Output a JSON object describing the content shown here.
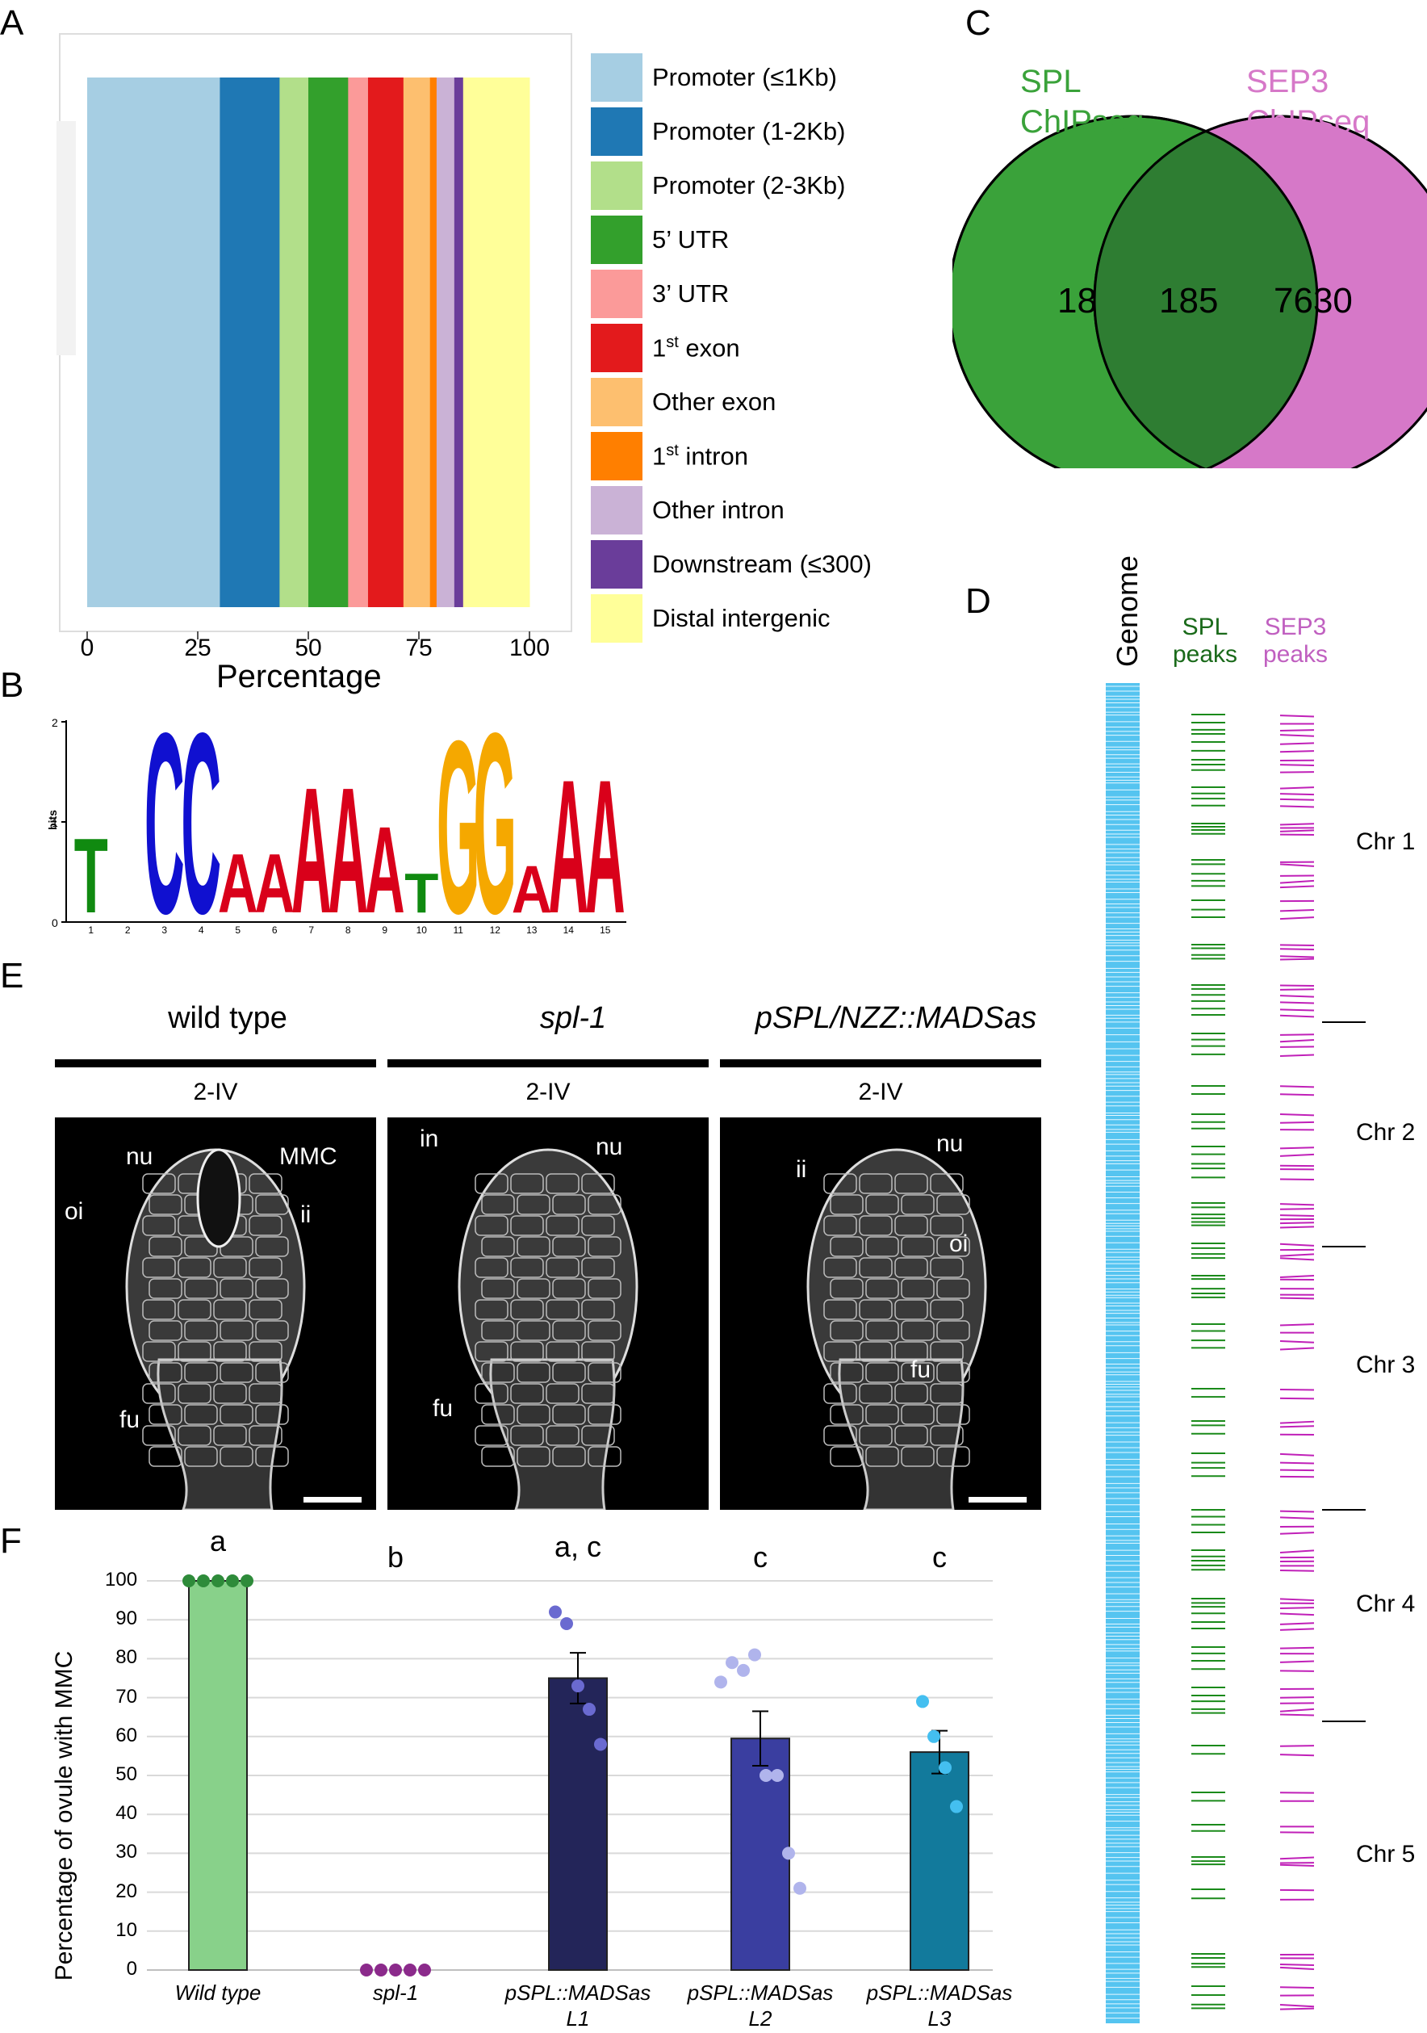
{
  "panels": {
    "a": "A",
    "b": "B",
    "c": "C",
    "d": "D",
    "e": "E",
    "f": "F"
  },
  "panelA": {
    "xlabel": "Percentage",
    "ticks": [
      "0",
      "25",
      "50",
      "75",
      "100"
    ],
    "legend": [
      {
        "label": "Promoter (≤1Kb)",
        "color": "#a6cee3"
      },
      {
        "label": "Promoter (1-2Kb)",
        "color": "#1f78b4"
      },
      {
        "label": "Promoter (2-3Kb)",
        "color": "#b2df8a"
      },
      {
        "label": "5’ UTR",
        "color": "#33a02c"
      },
      {
        "label": "3’ UTR",
        "color": "#fb9a99"
      },
      {
        "label_base": "1",
        "label_sup": "st",
        "label_rest": " exon",
        "color": "#e31a1c"
      },
      {
        "label": "Other exon",
        "color": "#fdbf6f"
      },
      {
        "label_base": "1",
        "label_sup": "st",
        "label_rest": " intron",
        "color": "#ff7f00"
      },
      {
        "label": "Other intron",
        "color": "#cab2d6"
      },
      {
        "label": "Downstream (≤300)",
        "color": "#6a3d9a"
      },
      {
        "label": "Distal intergenic",
        "color": "#ffff99"
      }
    ]
  },
  "panelB": {
    "ylabel": "bits",
    "yticks": [
      "2",
      "1",
      "0"
    ],
    "positions": [
      "1",
      "2",
      "3",
      "4",
      "5",
      "6",
      "7",
      "8",
      "9",
      "10",
      "11",
      "12",
      "13",
      "14",
      "15"
    ],
    "motif": [
      "T",
      "",
      "C",
      "C",
      "A",
      "A",
      "A",
      "A",
      "A",
      "T",
      "G",
      "G",
      "A",
      "A",
      "A"
    ]
  },
  "panelC": {
    "set1_label_line1": "SPL",
    "set1_label_line2": "ChIPseq",
    "set2_label_line1": "SEP3",
    "set2_label_line2": "ChIPseq",
    "only1": "18",
    "both": "185",
    "only2": "7630",
    "color1": "#3aa23a",
    "color2": "#d678c8",
    "overlap_color": "#2e7d32"
  },
  "panelD": {
    "genome_label": "Genome",
    "spl_line1": "SPL",
    "spl_line2": "peaks",
    "sep3_line1": "SEP3",
    "sep3_line2": "peaks",
    "chromosomes": [
      "Chr 1",
      "Chr 2",
      "Chr 3",
      "Chr 4",
      "Chr 5"
    ],
    "genome_color": "#55c4f0",
    "spl_color": "#1a8a1a",
    "sep3_color": "#c020b8"
  },
  "panelE": {
    "columns": [
      {
        "title": "wild type",
        "stage": "2-IV",
        "italic": false,
        "labels": [
          "nu",
          "MMC",
          "oi",
          "ii",
          "fu"
        ]
      },
      {
        "title": "spl-1",
        "stage": "2-IV",
        "italic": true,
        "labels": [
          "in",
          "nu",
          "fu"
        ]
      },
      {
        "title": "pSPL/NZZ::MADSas",
        "stage": "2-IV",
        "italic": true,
        "labels": [
          "ii",
          "nu",
          "oi",
          "fu"
        ]
      }
    ]
  },
  "chart_data": {
    "type": "bar",
    "ylabel": "Percentage of ovule with MMC",
    "ylim": [
      0,
      100
    ],
    "yticks": [
      "0",
      "10",
      "20",
      "30",
      "40",
      "50",
      "60",
      "70",
      "80",
      "90",
      "100"
    ],
    "categories": [
      {
        "line1": "Wild type",
        "line2": ""
      },
      {
        "line1": "spl-1",
        "line2": ""
      },
      {
        "line1": "pSPL::MADSas",
        "line2": "L1"
      },
      {
        "line1": "pSPL::MADSas",
        "line2": "L2"
      },
      {
        "line1": "pSPL::MADSas",
        "line2": "L3"
      }
    ],
    "values": [
      100,
      0,
      75,
      59.5,
      56
    ],
    "errors": [
      0,
      0,
      6.5,
      7,
      5.5
    ],
    "significance": [
      "a",
      "b",
      "a, c",
      "c",
      "c"
    ],
    "bar_colors": [
      "#88d18a",
      "#7a1a7a",
      "#232559",
      "#3a3ea0",
      "#127a9c"
    ],
    "point_colors": [
      "#2e8b3a",
      "#8b2a8b",
      "#6a6ad0",
      "#b0b4ec",
      "#44bff0"
    ],
    "points": [
      [
        100,
        100,
        100,
        100,
        100
      ],
      [
        0,
        0,
        0,
        0,
        0
      ],
      [
        92,
        89,
        73,
        67,
        58
      ],
      [
        74,
        79,
        77,
        81,
        50,
        50,
        30,
        21
      ],
      [
        69,
        60,
        52,
        42
      ]
    ]
  }
}
